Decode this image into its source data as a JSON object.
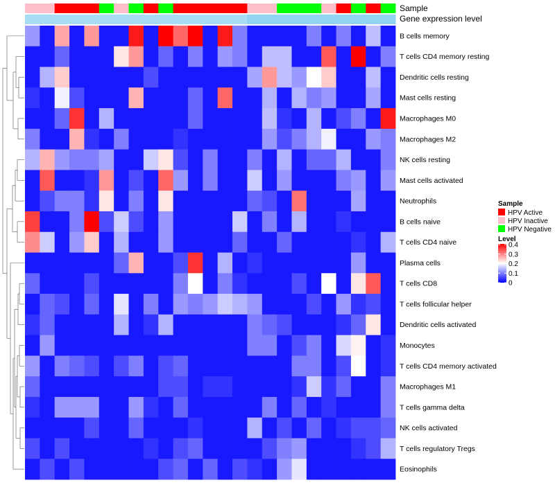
{
  "chart_data": {
    "type": "heatmap",
    "title": "",
    "annotation_labels": {
      "sample": "Sample",
      "gene_expression": "Gene expression level"
    },
    "rows": [
      "B cells memory",
      "T cells CD4 memory resting",
      "Dendritic cells resting",
      "Mast cells resting",
      "Macrophages M0",
      "Macrophages M2",
      "NK cells resting",
      "Mast cells activated",
      "Neutrophils",
      "B cells naive",
      "T cells CD4 naive",
      "Plasma cells",
      "T cells CD8",
      "T cells follicular helper",
      "Dendritic cells activated",
      "Monocytes",
      "T cells CD4 memory activated",
      "Macrophages M1",
      "T cells gamma delta",
      "NK cells activated",
      "T cells regulatory  Tregs",
      "Eosinophils"
    ],
    "sample_groups": [
      "Inactive",
      "Inactive",
      "Active",
      "Active",
      "Active",
      "Negative",
      "Inactive",
      "Negative",
      "Active",
      "Negative",
      "Active",
      "Active",
      "Active",
      "Active",
      "Active",
      "Inactive",
      "Inactive",
      "Negative",
      "Negative",
      "Negative",
      "Inactive",
      "Active",
      "Negative",
      "Active",
      "Negative"
    ],
    "gene_expression_level": [
      0.3,
      0.3,
      0.3,
      0.3,
      0.3,
      0.3,
      0.3,
      0.3,
      0.3,
      0.3,
      0.3,
      0.3,
      0.3,
      0.3,
      0.3,
      0.6,
      0.6,
      0.6,
      0.6,
      0.6,
      0.6,
      0.6,
      0.6,
      0.6,
      0.6
    ],
    "values": [
      [
        0.12,
        0.02,
        0.27,
        0.02,
        0.28,
        0.02,
        0.02,
        0.38,
        0.02,
        0.4,
        0.32,
        0.4,
        0.02,
        0.38,
        0.1,
        0.02,
        0.02,
        0.02,
        0.02,
        0.1,
        0.02,
        0.1,
        0.02,
        0.15,
        0.02
      ],
      [
        0.02,
        0.02,
        0.08,
        0.02,
        0.02,
        0.02,
        0.22,
        0.28,
        0.02,
        0.08,
        0.02,
        0.1,
        0.02,
        0.12,
        0.1,
        0.02,
        0.15,
        0.15,
        0.02,
        0.02,
        0.33,
        0.02,
        0.4,
        0.02,
        0.1
      ],
      [
        0.02,
        0.14,
        0.24,
        0.02,
        0.02,
        0.02,
        0.02,
        0.02,
        0.06,
        0.02,
        0.02,
        0.02,
        0.02,
        0.02,
        0.02,
        0.13,
        0.28,
        0.15,
        0.12,
        0.2,
        0.24,
        0.02,
        0.02,
        0.15,
        0.02
      ],
      [
        0.04,
        0.02,
        0.19,
        0.06,
        0.02,
        0.02,
        0.02,
        0.26,
        0.02,
        0.02,
        0.02,
        0.08,
        0.02,
        0.32,
        0.02,
        0.02,
        0.14,
        0.02,
        0.14,
        0.1,
        0.12,
        0.02,
        0.02,
        0.13,
        0.02
      ],
      [
        0.02,
        0.02,
        0.08,
        0.36,
        0.02,
        0.14,
        0.02,
        0.02,
        0.02,
        0.02,
        0.02,
        0.08,
        0.02,
        0.02,
        0.02,
        0.02,
        0.15,
        0.04,
        0.02,
        0.14,
        0.02,
        0.06,
        0.1,
        0.02,
        0.38
      ],
      [
        0.1,
        0.02,
        0.02,
        0.26,
        0.04,
        0.02,
        0.1,
        0.02,
        0.02,
        0.02,
        0.04,
        0.02,
        0.02,
        0.02,
        0.02,
        0.02,
        0.12,
        0.06,
        0.1,
        0.14,
        0.19,
        0.02,
        0.02,
        0.12,
        0.1
      ],
      [
        0.14,
        0.26,
        0.12,
        0.1,
        0.1,
        0.13,
        0.02,
        0.02,
        0.16,
        0.22,
        0.06,
        0.02,
        0.1,
        0.02,
        0.02,
        0.1,
        0.02,
        0.14,
        0.02,
        0.08,
        0.08,
        0.14,
        0.02,
        0.02,
        0.1
      ],
      [
        0.02,
        0.33,
        0.02,
        0.02,
        0.04,
        0.28,
        0.02,
        0.06,
        0.02,
        0.32,
        0.12,
        0.02,
        0.1,
        0.02,
        0.02,
        0.16,
        0.02,
        0.12,
        0.02,
        0.02,
        0.02,
        0.1,
        0.12,
        0.02,
        0.12
      ],
      [
        0.02,
        0.06,
        0.1,
        0.1,
        0.04,
        0.22,
        0.02,
        0.1,
        0.02,
        0.22,
        0.02,
        0.02,
        0.02,
        0.02,
        0.02,
        0.08,
        0.06,
        0.02,
        0.31,
        0.02,
        0.02,
        0.02,
        0.13,
        0.02,
        0.02
      ],
      [
        0.35,
        0.02,
        0.02,
        0.1,
        0.4,
        0.06,
        0.16,
        0.06,
        0.02,
        0.12,
        0.02,
        0.02,
        0.02,
        0.02,
        0.16,
        0.02,
        0.1,
        0.02,
        0.14,
        0.02,
        0.02,
        0.04,
        0.02,
        0.02,
        0.02
      ],
      [
        0.29,
        0.16,
        0.02,
        0.12,
        0.24,
        0.02,
        0.14,
        0.02,
        0.02,
        0.12,
        0.02,
        0.02,
        0.02,
        0.02,
        0.08,
        0.02,
        0.02,
        0.08,
        0.02,
        0.02,
        0.02,
        0.02,
        0.04,
        0.02,
        0.14
      ],
      [
        0.02,
        0.02,
        0.02,
        0.02,
        0.02,
        0.02,
        0.08,
        0.26,
        0.02,
        0.02,
        0.06,
        0.36,
        0.02,
        0.14,
        0.02,
        0.04,
        0.02,
        0.02,
        0.02,
        0.02,
        0.02,
        0.02,
        0.12,
        0.02,
        0.02
      ],
      [
        0.08,
        0.02,
        0.02,
        0.02,
        0.06,
        0.02,
        0.02,
        0.02,
        0.02,
        0.02,
        0.1,
        0.2,
        0.02,
        0.1,
        0.04,
        0.02,
        0.02,
        0.02,
        0.06,
        0.02,
        0.2,
        0.02,
        0.22,
        0.33,
        0.02
      ],
      [
        0.02,
        0.08,
        0.06,
        0.02,
        0.08,
        0.02,
        0.18,
        0.02,
        0.1,
        0.02,
        0.12,
        0.1,
        0.12,
        0.16,
        0.14,
        0.12,
        0.02,
        0.02,
        0.02,
        0.06,
        0.02,
        0.12,
        0.04,
        0.06,
        0.02
      ],
      [
        0.04,
        0.08,
        0.02,
        0.02,
        0.02,
        0.02,
        0.14,
        0.02,
        0.04,
        0.14,
        0.02,
        0.02,
        0.02,
        0.02,
        0.02,
        0.1,
        0.08,
        0.06,
        0.02,
        0.02,
        0.02,
        0.04,
        0.08,
        0.22,
        0.02
      ],
      [
        0.02,
        0.12,
        0.02,
        0.02,
        0.02,
        0.02,
        0.02,
        0.02,
        0.02,
        0.02,
        0.02,
        0.02,
        0.02,
        0.02,
        0.02,
        0.1,
        0.1,
        0.02,
        0.06,
        0.1,
        0.02,
        0.17,
        0.21,
        0.02,
        0.04
      ],
      [
        0.12,
        0.02,
        0.1,
        0.08,
        0.06,
        0.02,
        0.06,
        0.1,
        0.02,
        0.06,
        0.08,
        0.02,
        0.02,
        0.02,
        0.02,
        0.02,
        0.02,
        0.02,
        0.1,
        0.1,
        0.02,
        0.06,
        0.2,
        0.02,
        0.04
      ],
      [
        0.08,
        0.02,
        0.02,
        0.02,
        0.02,
        0.02,
        0.02,
        0.02,
        0.02,
        0.06,
        0.06,
        0.02,
        0.04,
        0.04,
        0.02,
        0.02,
        0.02,
        0.02,
        0.04,
        0.16,
        0.04,
        0.08,
        0.02,
        0.02,
        0.1
      ],
      [
        0.04,
        0.02,
        0.12,
        0.12,
        0.12,
        0.02,
        0.02,
        0.12,
        0.04,
        0.02,
        0.08,
        0.02,
        0.02,
        0.02,
        0.02,
        0.02,
        0.1,
        0.02,
        0.08,
        0.02,
        0.04,
        0.02,
        0.02,
        0.02,
        0.1
      ],
      [
        0.02,
        0.02,
        0.02,
        0.02,
        0.06,
        0.02,
        0.02,
        0.08,
        0.02,
        0.02,
        0.02,
        0.04,
        0.02,
        0.02,
        0.02,
        0.14,
        0.02,
        0.06,
        0.02,
        0.08,
        0.02,
        0.04,
        0.06,
        0.06,
        0.08
      ],
      [
        0.06,
        0.02,
        0.06,
        0.02,
        0.02,
        0.02,
        0.02,
        0.02,
        0.04,
        0.02,
        0.06,
        0.08,
        0.02,
        0.02,
        0.02,
        0.02,
        0.06,
        0.1,
        0.12,
        0.02,
        0.02,
        0.02,
        0.04,
        0.06,
        0.14
      ],
      [
        0.02,
        0.06,
        0.02,
        0.06,
        0.02,
        0.02,
        0.02,
        0.02,
        0.02,
        0.06,
        0.08,
        0.02,
        0.08,
        0.02,
        0.06,
        0.04,
        0.02,
        0.12,
        0.18,
        0.02,
        0.02,
        0.02,
        0.02,
        0.02,
        0.02
      ]
    ],
    "legend": {
      "sample_title": "Sample",
      "sample_entries": [
        {
          "label": "HPV Active",
          "color": "#ff0000"
        },
        {
          "label": "HPV Inactive",
          "color": "#ffc0cb"
        },
        {
          "label": "HPV Negative",
          "color": "#00ff00"
        }
      ],
      "level_title": "Level",
      "level_ticks": [
        "0.4",
        "0.3",
        "0.2",
        "0.1",
        "0"
      ],
      "level_range": [
        0,
        0.4
      ]
    },
    "colors": {
      "low": "#0000ff",
      "mid": "#ffffff",
      "high": "#ff0000",
      "active": "#ff0000",
      "inactive": "#ffc0cb",
      "negative": "#00ff00",
      "expr_low": "#bfe6f8",
      "expr_high": "#72c6ef"
    }
  }
}
